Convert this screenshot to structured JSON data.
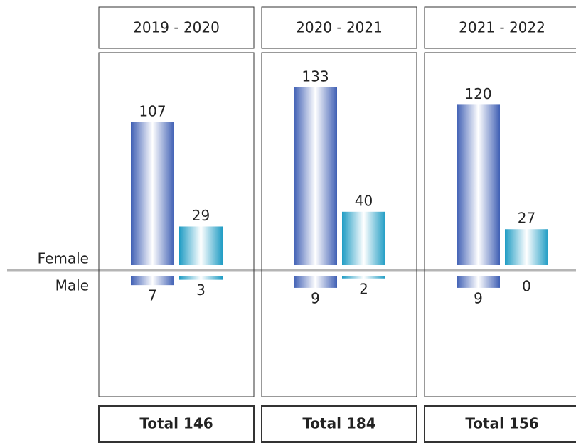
{
  "chart_data": {
    "type": "bar",
    "categories": [
      "2019 - 2020",
      "2020 - 2021",
      "2021 - 2022"
    ],
    "series": [
      {
        "name": "Female",
        "values": [
          [
            107,
            29
          ],
          [
            133,
            40
          ],
          [
            120,
            27
          ]
        ]
      },
      {
        "name": "Male",
        "values": [
          [
            7,
            3
          ],
          [
            9,
            2
          ],
          [
            9,
            0
          ]
        ]
      }
    ],
    "colors": [
      "#3f5fb4",
      "#1f9cc4"
    ],
    "totals": [
      {
        "value": 146,
        "label": "Total 146"
      },
      {
        "value": 184,
        "label": "Total 184"
      },
      {
        "value": 156,
        "label": "Total 156"
      }
    ]
  }
}
